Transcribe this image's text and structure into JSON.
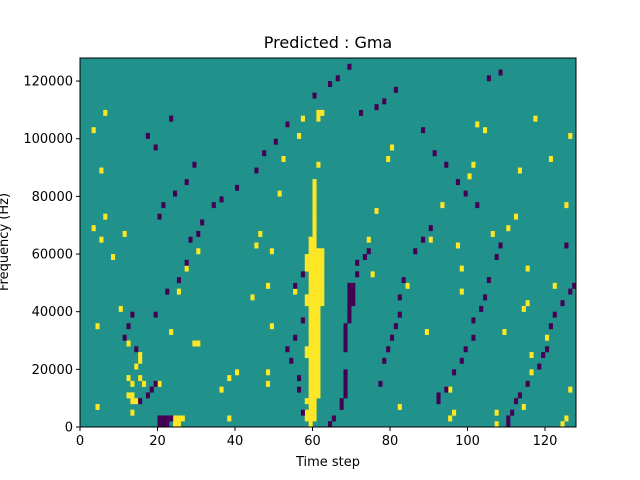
{
  "chart_data": {
    "type": "heatmap",
    "title": "Predicted : Gma",
    "xlabel": "Time step",
    "ylabel": "Frequency (Hz)",
    "xlim": [
      0,
      128
    ],
    "ylim": [
      0,
      128000
    ],
    "x_ticks": [
      0,
      20,
      40,
      60,
      80,
      100,
      120
    ],
    "y_ticks": [
      0,
      20000,
      40000,
      60000,
      80000,
      100000,
      120000
    ],
    "x_tick_labels": [
      "0",
      "20",
      "40",
      "60",
      "80",
      "100",
      "120"
    ],
    "y_tick_labels": [
      "0",
      "20000",
      "40000",
      "60000",
      "80000",
      "100000",
      "120000"
    ],
    "grid": false,
    "colors": {
      "background": "#21918c",
      "high": "#fde725",
      "low": "#440154"
    },
    "legend": "none",
    "cell_width": 1,
    "cell_height": 2000,
    "high_cells": [
      [
        59,
        0
      ],
      [
        59,
        2000
      ],
      [
        59,
        4000
      ],
      [
        59,
        6000
      ],
      [
        59,
        8000
      ],
      [
        59,
        10000
      ],
      [
        59,
        12000
      ],
      [
        59,
        14000
      ],
      [
        59,
        16000
      ],
      [
        59,
        18000
      ],
      [
        59,
        20000
      ],
      [
        59,
        22000
      ],
      [
        59,
        24000
      ],
      [
        59,
        26000
      ],
      [
        59,
        28000
      ],
      [
        59,
        30000
      ],
      [
        59,
        32000
      ],
      [
        59,
        34000
      ],
      [
        59,
        36000
      ],
      [
        59,
        38000
      ],
      [
        59,
        40000
      ],
      [
        59,
        42000
      ],
      [
        59,
        44000
      ],
      [
        59,
        46000
      ],
      [
        59,
        48000
      ],
      [
        59,
        50000
      ],
      [
        59,
        52000
      ],
      [
        59,
        54000
      ],
      [
        59,
        56000
      ],
      [
        59,
        58000
      ],
      [
        59,
        60000
      ],
      [
        59,
        62000
      ],
      [
        59,
        64000
      ],
      [
        60,
        2000
      ],
      [
        60,
        4000
      ],
      [
        60,
        6000
      ],
      [
        60,
        8000
      ],
      [
        60,
        10000
      ],
      [
        60,
        12000
      ],
      [
        60,
        14000
      ],
      [
        60,
        16000
      ],
      [
        60,
        18000
      ],
      [
        60,
        20000
      ],
      [
        60,
        22000
      ],
      [
        60,
        24000
      ],
      [
        60,
        26000
      ],
      [
        60,
        28000
      ],
      [
        60,
        30000
      ],
      [
        60,
        32000
      ],
      [
        60,
        34000
      ],
      [
        60,
        36000
      ],
      [
        60,
        38000
      ],
      [
        60,
        40000
      ],
      [
        60,
        42000
      ],
      [
        60,
        44000
      ],
      [
        60,
        46000
      ],
      [
        60,
        48000
      ],
      [
        60,
        50000
      ],
      [
        60,
        52000
      ],
      [
        60,
        54000
      ],
      [
        60,
        56000
      ],
      [
        60,
        58000
      ],
      [
        60,
        60000
      ],
      [
        60,
        62000
      ],
      [
        60,
        64000
      ],
      [
        60,
        66000
      ],
      [
        60,
        68000
      ],
      [
        60,
        70000
      ],
      [
        60,
        72000
      ],
      [
        60,
        74000
      ],
      [
        60,
        76000
      ],
      [
        60,
        78000
      ],
      [
        60,
        80000
      ],
      [
        60,
        82000
      ],
      [
        60,
        84000
      ],
      [
        61,
        10000
      ],
      [
        61,
        12000
      ],
      [
        61,
        14000
      ],
      [
        61,
        16000
      ],
      [
        61,
        18000
      ],
      [
        61,
        20000
      ],
      [
        61,
        22000
      ],
      [
        61,
        24000
      ],
      [
        61,
        26000
      ],
      [
        61,
        28000
      ],
      [
        61,
        30000
      ],
      [
        61,
        32000
      ],
      [
        61,
        34000
      ],
      [
        61,
        36000
      ],
      [
        61,
        38000
      ],
      [
        61,
        40000
      ],
      [
        61,
        42000
      ],
      [
        61,
        44000
      ],
      [
        61,
        46000
      ],
      [
        61,
        48000
      ],
      [
        61,
        50000
      ],
      [
        61,
        52000
      ],
      [
        61,
        54000
      ],
      [
        61,
        56000
      ],
      [
        61,
        58000
      ],
      [
        61,
        60000
      ],
      [
        62,
        42000
      ],
      [
        62,
        44000
      ],
      [
        62,
        46000
      ],
      [
        62,
        48000
      ],
      [
        62,
        50000
      ],
      [
        62,
        52000
      ],
      [
        62,
        54000
      ],
      [
        62,
        56000
      ],
      [
        62,
        58000
      ],
      [
        62,
        60000
      ],
      [
        58,
        2000
      ],
      [
        58,
        4000
      ],
      [
        58,
        8000
      ],
      [
        58,
        24000
      ],
      [
        58,
        26000
      ],
      [
        58,
        42000
      ],
      [
        58,
        44000
      ],
      [
        58,
        54000
      ],
      [
        58,
        56000
      ],
      [
        58,
        58000
      ],
      [
        61,
        90000
      ],
      [
        61,
        106000
      ],
      [
        61,
        108000
      ],
      [
        62,
        108000
      ],
      [
        24,
        0
      ],
      [
        25,
        0
      ],
      [
        24,
        2000
      ],
      [
        25,
        2000
      ],
      [
        20,
        14000
      ],
      [
        26,
        2000
      ],
      [
        15,
        24000
      ],
      [
        13,
        4000
      ],
      [
        13,
        8000
      ],
      [
        13,
        10000
      ],
      [
        13,
        14000
      ],
      [
        14,
        8000
      ],
      [
        16,
        14000
      ],
      [
        15,
        16000
      ],
      [
        14,
        20000
      ],
      [
        15,
        22000
      ],
      [
        23,
        32000
      ],
      [
        25,
        46000
      ],
      [
        27,
        54000
      ],
      [
        29,
        28000
      ],
      [
        30,
        28000
      ],
      [
        30,
        60000
      ],
      [
        36,
        12000
      ],
      [
        38,
        16000
      ],
      [
        40,
        18000
      ],
      [
        38,
        2000
      ],
      [
        44,
        44000
      ],
      [
        45,
        62000
      ],
      [
        46,
        66000
      ],
      [
        48,
        48000
      ],
      [
        49,
        60000
      ],
      [
        48,
        14000
      ],
      [
        48,
        18000
      ],
      [
        49,
        34000
      ],
      [
        51,
        80000
      ],
      [
        52,
        92000
      ],
      [
        53,
        104000
      ],
      [
        55,
        46000
      ],
      [
        56,
        100000
      ],
      [
        57,
        106000
      ],
      [
        74,
        64000
      ],
      [
        75,
        52000
      ],
      [
        76,
        74000
      ],
      [
        79,
        92000
      ],
      [
        80,
        96000
      ],
      [
        82,
        6000
      ],
      [
        84,
        48000
      ],
      [
        89,
        32000
      ],
      [
        90,
        64000
      ],
      [
        93,
        76000
      ],
      [
        95,
        12000
      ],
      [
        95,
        2000
      ],
      [
        96,
        4000
      ],
      [
        97,
        62000
      ],
      [
        98,
        54000
      ],
      [
        98,
        46000
      ],
      [
        100,
        86000
      ],
      [
        101,
        90000
      ],
      [
        102,
        104000
      ],
      [
        104,
        102000
      ],
      [
        106,
        66000
      ],
      [
        107,
        4000
      ],
      [
        107,
        0
      ],
      [
        109,
        32000
      ],
      [
        110,
        68000
      ],
      [
        112,
        72000
      ],
      [
        113,
        88000
      ],
      [
        114,
        6000
      ],
      [
        114,
        40000
      ],
      [
        115,
        42000
      ],
      [
        115,
        54000
      ],
      [
        116,
        18000
      ],
      [
        116,
        24000
      ],
      [
        117,
        106000
      ],
      [
        120,
        30000
      ],
      [
        121,
        92000
      ],
      [
        122,
        48000
      ],
      [
        124,
        0
      ],
      [
        125,
        2000
      ],
      [
        126,
        100000
      ],
      [
        125,
        76000
      ],
      [
        126,
        12000
      ],
      [
        4,
        6000
      ],
      [
        4,
        34000
      ],
      [
        5,
        88000
      ],
      [
        6,
        72000
      ],
      [
        6,
        108000
      ],
      [
        5,
        64000
      ],
      [
        3,
        68000
      ],
      [
        3,
        102000
      ],
      [
        8,
        58000
      ],
      [
        10,
        40000
      ],
      [
        11,
        66000
      ],
      [
        12,
        10000
      ],
      [
        12,
        16000
      ],
      [
        12,
        28000
      ]
    ],
    "low_cells": [
      [
        20,
        0
      ],
      [
        21,
        0
      ],
      [
        22,
        0
      ],
      [
        20,
        2000
      ],
      [
        21,
        2000
      ],
      [
        22,
        2000
      ],
      [
        23,
        2000
      ],
      [
        19,
        14000
      ],
      [
        15,
        8000
      ],
      [
        17,
        10000
      ],
      [
        18,
        12000
      ],
      [
        14,
        26000
      ],
      [
        11,
        30000
      ],
      [
        12,
        34000
      ],
      [
        13,
        38000
      ],
      [
        19,
        38000
      ],
      [
        22,
        46000
      ],
      [
        25,
        50000
      ],
      [
        27,
        56000
      ],
      [
        28,
        64000
      ],
      [
        30,
        66000
      ],
      [
        31,
        70000
      ],
      [
        34,
        76000
      ],
      [
        36,
        78000
      ],
      [
        40,
        82000
      ],
      [
        45,
        88000
      ],
      [
        47,
        94000
      ],
      [
        50,
        98000
      ],
      [
        53,
        104000
      ],
      [
        64,
        0
      ],
      [
        65,
        2000
      ],
      [
        67,
        6000
      ],
      [
        67,
        8000
      ],
      [
        68,
        10000
      ],
      [
        68,
        12000
      ],
      [
        68,
        14000
      ],
      [
        68,
        16000
      ],
      [
        68,
        18000
      ],
      [
        68,
        26000
      ],
      [
        68,
        28000
      ],
      [
        68,
        30000
      ],
      [
        68,
        32000
      ],
      [
        68,
        34000
      ],
      [
        69,
        36000
      ],
      [
        69,
        38000
      ],
      [
        69,
        40000
      ],
      [
        69,
        42000
      ],
      [
        69,
        44000
      ],
      [
        69,
        46000
      ],
      [
        69,
        48000
      ],
      [
        70,
        42000
      ],
      [
        70,
        44000
      ],
      [
        70,
        46000
      ],
      [
        70,
        48000
      ],
      [
        71,
        52000
      ],
      [
        71,
        56000
      ],
      [
        73,
        58000
      ],
      [
        74,
        60000
      ],
      [
        57,
        4000
      ],
      [
        56,
        12000
      ],
      [
        56,
        16000
      ],
      [
        54,
        22000
      ],
      [
        53,
        26000
      ],
      [
        55,
        30000
      ],
      [
        57,
        36000
      ],
      [
        55,
        48000
      ],
      [
        57,
        52000
      ],
      [
        77,
        14000
      ],
      [
        78,
        22000
      ],
      [
        79,
        26000
      ],
      [
        80,
        30000
      ],
      [
        81,
        34000
      ],
      [
        82,
        38000
      ],
      [
        82,
        44000
      ],
      [
        83,
        50000
      ],
      [
        86,
        60000
      ],
      [
        88,
        64000
      ],
      [
        90,
        68000
      ],
      [
        92,
        8000
      ],
      [
        92,
        10000
      ],
      [
        94,
        12000
      ],
      [
        96,
        18000
      ],
      [
        98,
        22000
      ],
      [
        99,
        26000
      ],
      [
        101,
        30000
      ],
      [
        101,
        36000
      ],
      [
        103,
        40000
      ],
      [
        104,
        44000
      ],
      [
        105,
        50000
      ],
      [
        107,
        58000
      ],
      [
        108,
        62000
      ],
      [
        110,
        0
      ],
      [
        110,
        2000
      ],
      [
        111,
        4000
      ],
      [
        112,
        8000
      ],
      [
        113,
        10000
      ],
      [
        115,
        14000
      ],
      [
        118,
        20000
      ],
      [
        119,
        24000
      ],
      [
        120,
        26000
      ],
      [
        121,
        34000
      ],
      [
        122,
        38000
      ],
      [
        124,
        42000
      ],
      [
        126,
        46000
      ],
      [
        127,
        48000
      ],
      [
        125,
        62000
      ],
      [
        20,
        72000
      ],
      [
        21,
        76000
      ],
      [
        24,
        80000
      ],
      [
        27,
        84000
      ],
      [
        29,
        90000
      ],
      [
        19,
        96000
      ],
      [
        17,
        100000
      ],
      [
        23,
        106000
      ],
      [
        60,
        114000
      ],
      [
        64,
        118000
      ],
      [
        66,
        120000
      ],
      [
        69,
        124000
      ],
      [
        72,
        108000
      ],
      [
        76,
        110000
      ],
      [
        78,
        112000
      ],
      [
        81,
        116000
      ],
      [
        88,
        102000
      ],
      [
        91,
        94000
      ],
      [
        94,
        90000
      ],
      [
        97,
        84000
      ],
      [
        99,
        80000
      ],
      [
        102,
        76000
      ],
      [
        105,
        120000
      ],
      [
        108,
        122000
      ]
    ]
  }
}
